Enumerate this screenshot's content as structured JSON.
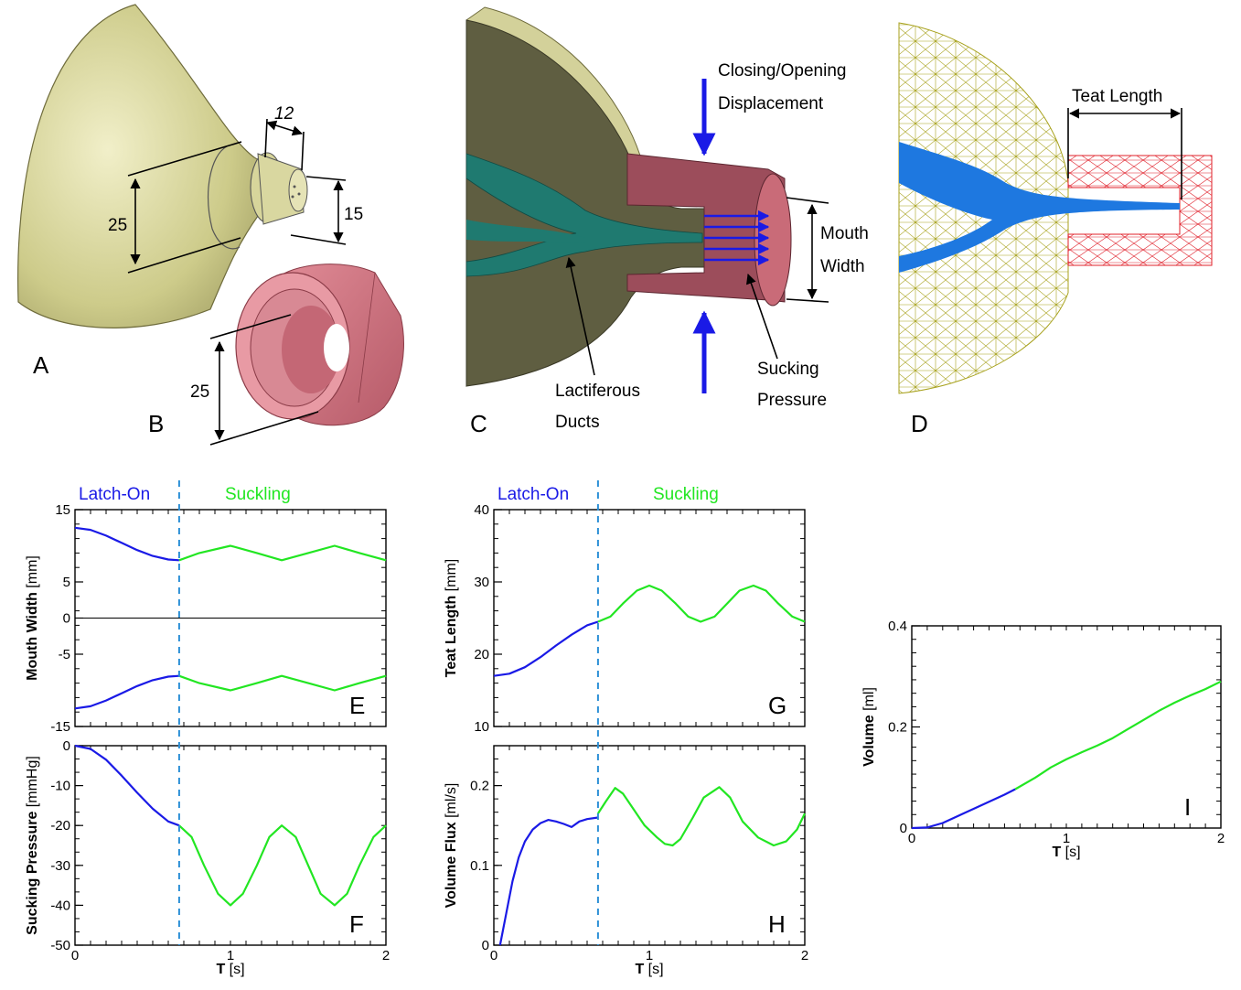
{
  "panels_top": {
    "A": {
      "letter": "A",
      "dim1": "12",
      "dim2": "25",
      "dim3": "15"
    },
    "B": {
      "letter": "B",
      "dim1": "25"
    },
    "C": {
      "letter": "C",
      "closing": "Closing/Opening",
      "displacement": "Displacement",
      "mouth": "Mouth",
      "width": "Width",
      "ducts1": "Lactiferous",
      "ducts2": "Ducts",
      "suck1": "Sucking",
      "suck2": "Pressure"
    },
    "D": {
      "letter": "D",
      "teat": "Teat Length"
    }
  },
  "phases": {
    "latch": "Latch-On",
    "suck": "Suckling",
    "latch_color": "#1a1ae6",
    "suck_color": "#22e622"
  },
  "colors": {
    "breast": "#cdcb8a",
    "mouth": "#c96b78",
    "ducts": "#1f7a70",
    "mesh_breast": "#a8a21e",
    "mesh_mouth": "#e0202a",
    "mesh_ducts": "#1e78e0",
    "divider": "#2b8fd6"
  },
  "chart_data": [
    {
      "id": "E",
      "type": "line",
      "letter": "E",
      "ylabel": "Mouth Width",
      "yunit": "[mm]",
      "xlim": [
        0,
        2
      ],
      "ylim": [
        -15,
        15
      ],
      "yticks": [
        -15,
        -5,
        0,
        5,
        15
      ],
      "xticks": [],
      "divider_x": 0.67,
      "zero_line": true,
      "series": [
        {
          "phase": "latch",
          "x": [
            0,
            0.1,
            0.2,
            0.3,
            0.4,
            0.5,
            0.6,
            0.67
          ],
          "y": [
            12.5,
            12.2,
            11.4,
            10.4,
            9.4,
            8.6,
            8.1,
            8.0
          ]
        },
        {
          "phase": "suck",
          "x": [
            0.67,
            0.8,
            1.0,
            1.17,
            1.33,
            1.5,
            1.67,
            1.83,
            2.0
          ],
          "y": [
            8.0,
            9.0,
            10.0,
            9.0,
            8.0,
            9.0,
            10.0,
            9.0,
            8.0
          ]
        },
        {
          "phase": "latch",
          "x": [
            0,
            0.1,
            0.2,
            0.3,
            0.4,
            0.5,
            0.6,
            0.67
          ],
          "y": [
            -12.5,
            -12.2,
            -11.4,
            -10.4,
            -9.4,
            -8.6,
            -8.1,
            -8.0
          ]
        },
        {
          "phase": "suck",
          "x": [
            0.67,
            0.8,
            1.0,
            1.17,
            1.33,
            1.5,
            1.67,
            1.83,
            2.0
          ],
          "y": [
            -8.0,
            -9.0,
            -10.0,
            -9.0,
            -8.0,
            -9.0,
            -10.0,
            -9.0,
            -8.0
          ]
        }
      ]
    },
    {
      "id": "F",
      "type": "line",
      "letter": "F",
      "ylabel": "Sucking Pressure",
      "yunit": "[mmHg]",
      "xlim": [
        0,
        2
      ],
      "ylim": [
        -50,
        0
      ],
      "yticks": [
        -50,
        -40,
        -30,
        -20,
        -10,
        0
      ],
      "xticks": [
        0,
        1,
        2
      ],
      "xlabel": "T",
      "xunit": "[s]",
      "divider_x": 0.67,
      "series": [
        {
          "phase": "latch",
          "x": [
            0,
            0.1,
            0.2,
            0.3,
            0.4,
            0.5,
            0.6,
            0.67
          ],
          "y": [
            0,
            -0.8,
            -3.5,
            -7.5,
            -11.8,
            -15.8,
            -19.0,
            -20.0
          ]
        },
        {
          "phase": "suck",
          "x": [
            0.67,
            0.75,
            0.83,
            0.92,
            1.0,
            1.08,
            1.17,
            1.25,
            1.33,
            1.42,
            1.5,
            1.58,
            1.67,
            1.75,
            1.83,
            1.92,
            2.0
          ],
          "y": [
            -20,
            -22.9,
            -30,
            -37.1,
            -40,
            -37.1,
            -30,
            -22.9,
            -20,
            -22.9,
            -30,
            -37.1,
            -40,
            -37.1,
            -30,
            -22.9,
            -20
          ]
        }
      ]
    },
    {
      "id": "G",
      "type": "line",
      "letter": "G",
      "ylabel": "Teat Length",
      "yunit": "[mm]",
      "xlim": [
        0,
        2
      ],
      "ylim": [
        10,
        40
      ],
      "yticks": [
        10,
        20,
        30,
        40
      ],
      "xticks": [],
      "divider_x": 0.67,
      "series": [
        {
          "phase": "latch",
          "x": [
            0,
            0.1,
            0.2,
            0.3,
            0.4,
            0.5,
            0.6,
            0.67
          ],
          "y": [
            17.0,
            17.3,
            18.2,
            19.6,
            21.2,
            22.7,
            24.0,
            24.5
          ]
        },
        {
          "phase": "suck",
          "x": [
            0.67,
            0.75,
            0.83,
            0.92,
            1.0,
            1.08,
            1.17,
            1.25,
            1.33,
            1.42,
            1.5,
            1.58,
            1.67,
            1.75,
            1.83,
            1.92,
            2.0
          ],
          "y": [
            24.5,
            25.2,
            27.0,
            28.8,
            29.5,
            28.8,
            27.0,
            25.2,
            24.5,
            25.2,
            27.0,
            28.8,
            29.5,
            28.8,
            27.0,
            25.2,
            24.5
          ]
        }
      ]
    },
    {
      "id": "H",
      "type": "line",
      "letter": "H",
      "ylabel": "Volume Flux",
      "yunit": "[ml/s]",
      "xlim": [
        0,
        2
      ],
      "ylim": [
        0,
        0.25
      ],
      "yticks": [
        0,
        0.1,
        0.2
      ],
      "xticks": [
        0,
        1,
        2
      ],
      "xlabel": "T",
      "xunit": "[s]",
      "divider_x": 0.67,
      "series": [
        {
          "phase": "latch",
          "x": [
            0.04,
            0.08,
            0.12,
            0.16,
            0.2,
            0.25,
            0.3,
            0.35,
            0.4,
            0.45,
            0.5,
            0.55,
            0.6,
            0.67
          ],
          "y": [
            0.0,
            0.04,
            0.08,
            0.11,
            0.13,
            0.145,
            0.153,
            0.157,
            0.155,
            0.152,
            0.148,
            0.155,
            0.158,
            0.16
          ]
        },
        {
          "phase": "suck",
          "x": [
            0.67,
            0.72,
            0.78,
            0.83,
            0.9,
            0.97,
            1.05,
            1.1,
            1.15,
            1.2,
            1.28,
            1.35,
            1.45,
            1.52,
            1.6,
            1.7,
            1.8,
            1.88,
            1.95,
            2.0
          ],
          "y": [
            0.165,
            0.18,
            0.197,
            0.19,
            0.17,
            0.15,
            0.135,
            0.127,
            0.125,
            0.133,
            0.16,
            0.185,
            0.198,
            0.185,
            0.155,
            0.135,
            0.125,
            0.13,
            0.145,
            0.165
          ]
        }
      ]
    },
    {
      "id": "I",
      "type": "line",
      "letter": "I",
      "ylabel": "Volume",
      "yunit": "[ml]",
      "xlim": [
        0,
        2
      ],
      "ylim": [
        0,
        0.4
      ],
      "yticks": [
        0,
        0.2,
        0.4
      ],
      "xticks": [
        0,
        1,
        2
      ],
      "xlabel": "T",
      "xunit": "[s]",
      "series": [
        {
          "phase": "latch",
          "x": [
            0,
            0.1,
            0.2,
            0.3,
            0.4,
            0.5,
            0.6,
            0.67
          ],
          "y": [
            0,
            0.001,
            0.01,
            0.024,
            0.038,
            0.052,
            0.066,
            0.077
          ]
        },
        {
          "phase": "suck",
          "x": [
            0.67,
            0.8,
            0.9,
            1.0,
            1.1,
            1.2,
            1.3,
            1.4,
            1.5,
            1.6,
            1.7,
            1.8,
            1.9,
            2.0
          ],
          "y": [
            0.077,
            0.1,
            0.12,
            0.136,
            0.15,
            0.163,
            0.178,
            0.196,
            0.214,
            0.232,
            0.248,
            0.262,
            0.275,
            0.29
          ]
        }
      ]
    }
  ]
}
